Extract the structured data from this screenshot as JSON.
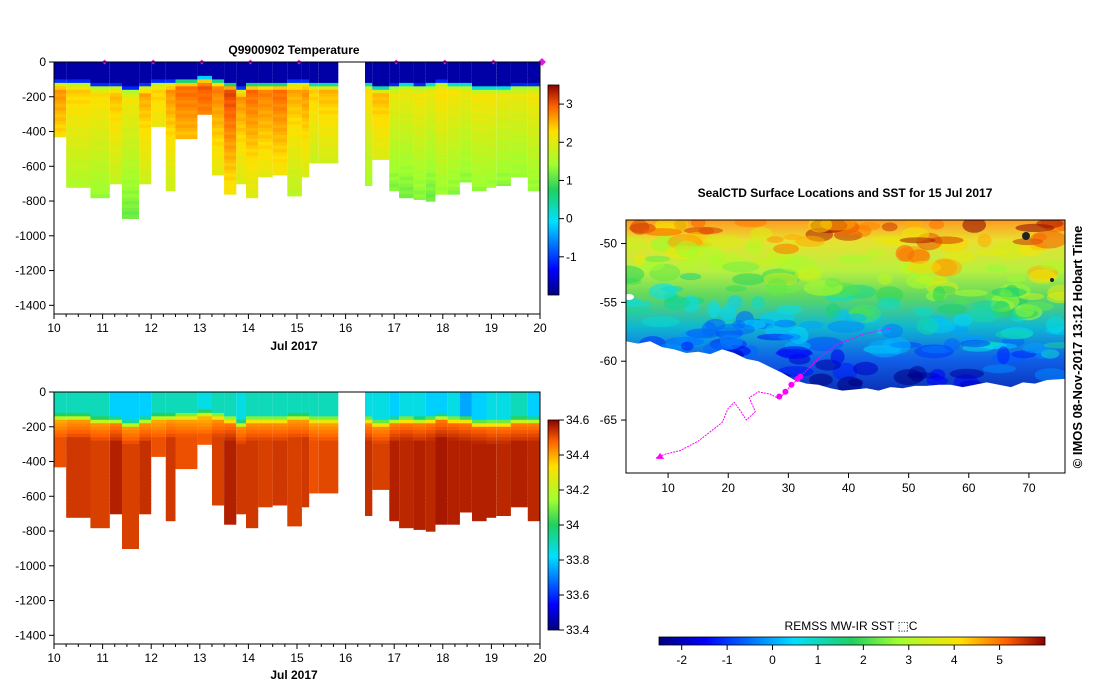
{
  "chart_data": [
    {
      "type": "heatmap",
      "id": "temperature",
      "title": "Q9900902  Temperature",
      "xlabel": "Jul 2017",
      "ylabel": "",
      "xlim": [
        10,
        20
      ],
      "ylim": [
        -1450,
        0
      ],
      "x_ticks": [
        "10",
        "11",
        "12",
        "13",
        "14",
        "15",
        "16",
        "17",
        "18",
        "19",
        "20"
      ],
      "y_ticks": [
        "0",
        "-200",
        "-400",
        "-600",
        "-800",
        "-1000",
        "-1200",
        "-1400"
      ],
      "colorbar": {
        "range": [
          -2,
          3.5
        ],
        "ticks": [
          "3",
          "2",
          "1",
          "0",
          "-1"
        ]
      },
      "profile_markers_day": [
        11,
        12,
        13,
        14,
        15,
        17,
        18,
        19,
        20
      ],
      "profiles": {
        "x_start": [
          10.0,
          10.25,
          10.75,
          11.15,
          11.4,
          11.75,
          12.0,
          12.3,
          12.5,
          12.95,
          13.25,
          13.5,
          13.75,
          13.95,
          14.2,
          14.5,
          14.8,
          15.1,
          15.25,
          15.45,
          15.85,
          16.4,
          16.55,
          16.9,
          17.1,
          17.4,
          17.65,
          17.85,
          18.1,
          18.35,
          18.6,
          18.9,
          19.1,
          19.4,
          19.75
        ],
        "x_end": [
          10.25,
          10.75,
          11.15,
          11.4,
          11.75,
          12.0,
          12.3,
          12.5,
          12.95,
          13.25,
          13.5,
          13.75,
          13.95,
          14.2,
          14.5,
          14.8,
          15.1,
          15.25,
          15.45,
          15.85,
          16.4,
          16.55,
          16.9,
          17.1,
          17.4,
          17.65,
          17.85,
          18.1,
          18.35,
          18.6,
          18.9,
          19.1,
          19.4,
          19.75,
          20.1
        ],
        "max_depth": [
          430,
          720,
          780,
          700,
          900,
          700,
          370,
          740,
          440,
          300,
          650,
          760,
          700,
          780,
          660,
          650,
          770,
          660,
          580,
          580,
          null,
          710,
          560,
          740,
          780,
          790,
          800,
          760,
          760,
          690,
          740,
          720,
          710,
          660,
          740
        ],
        "mixed_layer": [
          120,
          120,
          140,
          140,
          160,
          140,
          120,
          120,
          110,
          95,
          110,
          130,
          160,
          130,
          130,
          130,
          120,
          120,
          130,
          130,
          null,
          130,
          150,
          140,
          130,
          140,
          130,
          120,
          130,
          130,
          150,
          150,
          150,
          140,
          140
        ],
        "temp_at_400m": [
          2.4,
          2.1,
          2.0,
          2.2,
          1.9,
          2.3,
          2.1,
          2.4,
          2.6,
          2.7,
          2.5,
          2.8,
          2.4,
          2.6,
          2.5,
          2.6,
          2.3,
          2.4,
          2.1,
          2.2,
          null,
          2.0,
          2.2,
          1.8,
          1.8,
          1.9,
          1.8,
          2.0,
          1.9,
          1.8,
          1.9,
          1.9,
          1.8,
          1.8,
          1.9
        ]
      }
    },
    {
      "type": "heatmap",
      "id": "salinity",
      "title": "",
      "xlabel": "Jul 2017",
      "xlim": [
        10,
        20
      ],
      "ylim": [
        -1450,
        0
      ],
      "x_ticks": [
        "10",
        "11",
        "12",
        "13",
        "14",
        "15",
        "16",
        "17",
        "18",
        "19",
        "20"
      ],
      "y_ticks": [
        "0",
        "-200",
        "-400",
        "-600",
        "-800",
        "-1000",
        "-1200",
        "-1400"
      ],
      "colorbar": {
        "range": [
          33.4,
          34.6
        ],
        "ticks": [
          "34.6",
          "34.4",
          "34.2",
          "34",
          "33.8",
          "33.6",
          "33.4"
        ]
      },
      "profiles": {
        "sal_surface": [
          33.9,
          33.9,
          33.9,
          33.8,
          33.8,
          33.8,
          33.9,
          33.9,
          33.9,
          33.85,
          33.9,
          33.9,
          33.85,
          33.9,
          33.9,
          33.9,
          33.9,
          33.9,
          33.9,
          33.9,
          null,
          33.85,
          33.85,
          33.8,
          33.85,
          33.85,
          33.8,
          33.8,
          33.85,
          33.75,
          33.8,
          33.85,
          33.85,
          33.9,
          33.8
        ],
        "sal_deep": [
          34.5,
          34.52,
          34.52,
          34.55,
          34.52,
          34.53,
          34.5,
          34.52,
          34.5,
          34.48,
          34.52,
          34.55,
          34.53,
          34.52,
          34.52,
          34.52,
          34.52,
          34.52,
          34.5,
          34.5,
          null,
          34.53,
          34.52,
          34.55,
          34.55,
          34.55,
          34.55,
          34.56,
          34.56,
          34.55,
          34.56,
          34.55,
          34.55,
          34.55,
          34.55
        ]
      }
    },
    {
      "type": "map",
      "id": "sst-map",
      "title": "SealCTD Surface Locations and SST for 15 Jul 2017",
      "side_label": "© IMOS 08-Nov-2017 13:12 Hobart Time",
      "xlim": [
        3,
        76
      ],
      "ylim": [
        -69.5,
        -48
      ],
      "x_ticks": [
        "10",
        "20",
        "30",
        "40",
        "50",
        "60",
        "70"
      ],
      "y_ticks": [
        "-50",
        "-55",
        "-60",
        "-65"
      ],
      "ice_edge_lat": [
        -58.3,
        -58.5,
        -58.3,
        -58.8,
        -59.0,
        -59.3,
        -59.2,
        -59.4,
        -59.0,
        -59.3,
        -59.8,
        -60.0,
        -60.5,
        -61.0,
        -61.6,
        -61.9,
        -62.0,
        -62.3,
        -62.5,
        -62.4,
        -62.3,
        -62.5,
        -62.2,
        -62.3,
        -62.1,
        -62.1,
        -62.0,
        -62.0,
        -62.2,
        -62.0,
        -61.8,
        -62.0,
        -62.2,
        -61.8,
        -61.9,
        -61.6,
        -61.5
      ],
      "ice_edge_lon": [
        3,
        5,
        7,
        9,
        11,
        13,
        15,
        17,
        19,
        21,
        23,
        25,
        27,
        29,
        31,
        33,
        35,
        37,
        39,
        41,
        43,
        45,
        47,
        49,
        51,
        53,
        55,
        57,
        59,
        61,
        63,
        65,
        67,
        69,
        71,
        73,
        76
      ],
      "track_lon": [
        8.0,
        9.5,
        12,
        15,
        17,
        19,
        20,
        21,
        22,
        23,
        24.5,
        23.5,
        25,
        27,
        28.5,
        30,
        32,
        35,
        38,
        42,
        45,
        47
      ],
      "track_lat": [
        -68.2,
        -67.9,
        -67.6,
        -66.8,
        -66.0,
        -65.2,
        -64.0,
        -63.5,
        -64.2,
        -65.0,
        -64.3,
        -63.1,
        -62.6,
        -62.8,
        -63.2,
        -62.3,
        -61.3,
        -59.8,
        -58.6,
        -57.8,
        -57.4,
        -57.2
      ],
      "recent_lon": [
        28.5,
        29.5,
        30.5,
        31.5,
        32.0
      ],
      "recent_lat": [
        -63.0,
        -62.6,
        -62.0,
        -61.5,
        -61.3
      ],
      "colorbar": {
        "label": "REMSS MW-IR SST ⬚C",
        "range": [
          -2.5,
          6
        ],
        "ticks": [
          "-2",
          "-1",
          "0",
          "1",
          "2",
          "3",
          "4",
          "5"
        ]
      }
    }
  ]
}
